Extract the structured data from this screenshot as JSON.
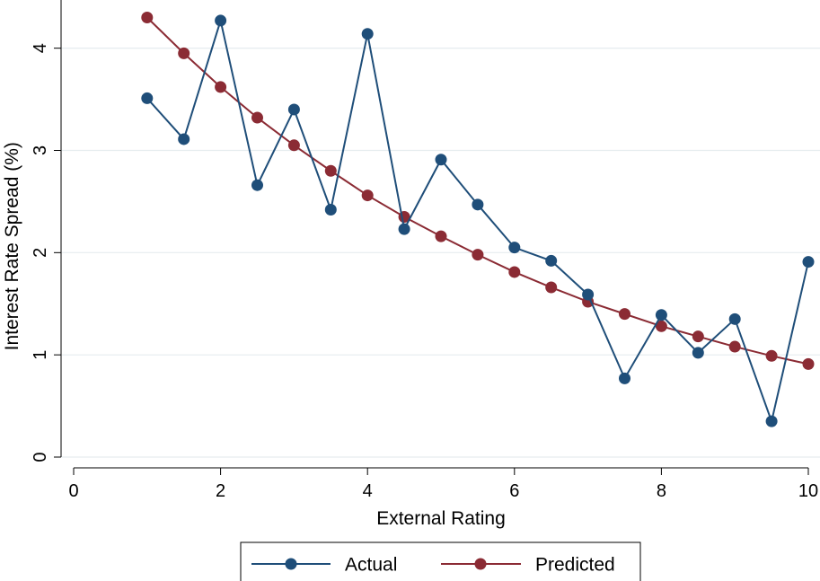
{
  "chart_data": {
    "type": "line",
    "xlabel": "External Rating",
    "ylabel": "Interest Rate Spread (%)",
    "xlim": [
      0,
      10
    ],
    "ylim": [
      0,
      4.3
    ],
    "xticks": [
      0,
      2,
      4,
      6,
      8,
      10
    ],
    "yticks": [
      0,
      1,
      2,
      3,
      4
    ],
    "grid": "horizontal",
    "legend_position": "bottom",
    "x": [
      1,
      1.5,
      2,
      2.5,
      3,
      3.5,
      4,
      4.5,
      5,
      5.5,
      6,
      6.5,
      7,
      7.5,
      8,
      8.5,
      9,
      9.5,
      10
    ],
    "series": [
      {
        "name": "Actual",
        "color": "#1f4e79",
        "values": [
          3.51,
          3.11,
          4.27,
          2.66,
          3.4,
          2.42,
          4.14,
          2.23,
          2.91,
          2.47,
          2.05,
          1.92,
          1.59,
          0.77,
          1.39,
          1.02,
          1.35,
          0.35,
          1.91
        ]
      },
      {
        "name": "Predicted",
        "color": "#8b2b34",
        "values": [
          4.3,
          3.95,
          3.62,
          3.32,
          3.05,
          2.8,
          2.56,
          2.35,
          2.16,
          1.98,
          1.81,
          1.66,
          1.52,
          1.4,
          1.28,
          1.18,
          1.08,
          0.99,
          0.91
        ]
      }
    ]
  }
}
